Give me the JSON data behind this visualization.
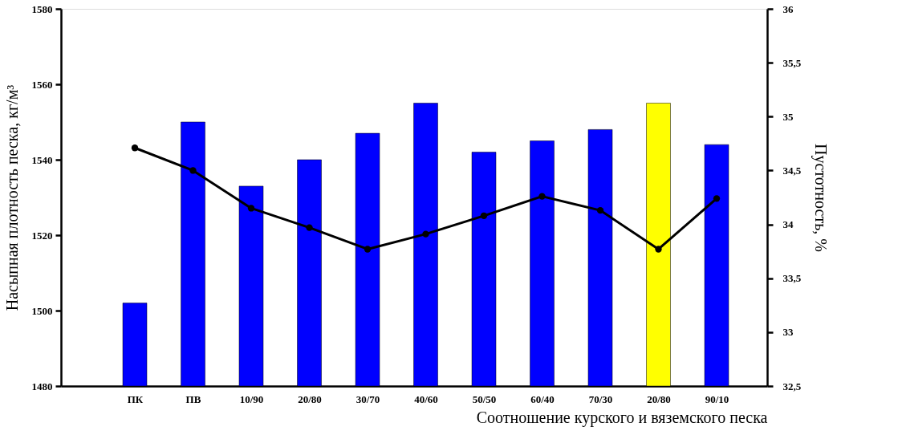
{
  "chart_data": {
    "type": "bar",
    "categories": [
      "ПК",
      "ПВ",
      "10/90",
      "20/80",
      "30/70",
      "40/60",
      "50/50",
      "60/40",
      "70/30",
      "20/80",
      "90/10"
    ],
    "xlabel": "Соотношение курского и вяземского песка",
    "ylabel": "Насыпная плотность песка, кг/м³",
    "y2label": "Пустотность, %",
    "ylim": [
      1480,
      1580
    ],
    "yticks": [
      1480,
      1500,
      1520,
      1540,
      1560,
      1580
    ],
    "y2lim": [
      32.5,
      36
    ],
    "y2ticks": [
      {
        "value": 32.5,
        "label": "32,5"
      },
      33,
      {
        "value": 33.5,
        "label": "33,5"
      },
      34,
      {
        "value": 34.5,
        "label": "34,5"
      },
      35,
      {
        "value": 35.5,
        "label": "35,5"
      },
      36
    ],
    "grid": false,
    "series": [
      {
        "colors": [
          "#0000ff",
          "#0000ff",
          "#0000ff",
          "#0000ff",
          "#0000ff",
          "#0000ff",
          "#0000ff",
          "#0000ff",
          "#0000ff",
          "#ffff00",
          "#0000ff"
        ],
        "values": [
          1502,
          1550,
          1533,
          1540,
          1547,
          1555,
          1542,
          1545,
          1548,
          1555,
          1544
        ]
      },
      {
        "type": "line",
        "axis": "y2",
        "color": "#000000",
        "marker": "circle",
        "line_style": "solid",
        "values": [
          34.71,
          34.5,
          34.15,
          33.97,
          33.77,
          33.91,
          34.08,
          34.26,
          34.13,
          33.77,
          34.24
        ]
      }
    ]
  }
}
